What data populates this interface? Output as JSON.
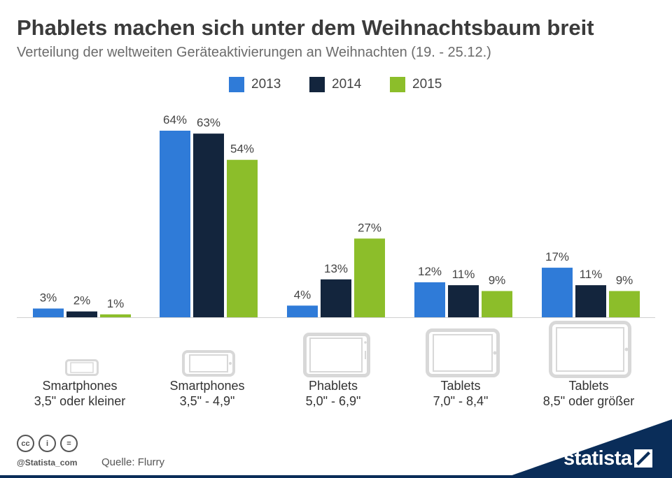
{
  "title": "Phablets machen sich unter dem Weihnachtsbaum breit",
  "subtitle": "Verteilung der weltweiten Geräteaktivierungen an Weihnachten (19. - 25.12.)",
  "legend": [
    {
      "label": "2013",
      "color": "#2f7bd8"
    },
    {
      "label": "2014",
      "color": "#13253d"
    },
    {
      "label": "2015",
      "color": "#8cbe2a"
    }
  ],
  "chart_data": {
    "type": "bar",
    "title": "Phablets machen sich unter dem Weihnachtsbaum breit",
    "subtitle": "Verteilung der weltweiten Geräteaktivierungen an Weihnachten (19. - 25.12.)",
    "categories": [
      "Smartphones 3,5\" oder kleiner",
      "Smartphones 3,5\" - 4,9\"",
      "Phablets 5,0\" - 6,9\"",
      "Tablets 7,0\" - 8,4\"",
      "Tablets 8,5\" oder größer"
    ],
    "series": [
      {
        "name": "2013",
        "values": [
          3,
          64,
          4,
          12,
          17
        ],
        "labels": [
          "3%",
          "64%",
          "4%",
          "12%",
          "17%"
        ]
      },
      {
        "name": "2014",
        "values": [
          2,
          63,
          13,
          11,
          11
        ],
        "labels": [
          "2%",
          "63%",
          "13%",
          "11%",
          "11%"
        ]
      },
      {
        "name": "2015",
        "values": [
          1,
          54,
          27,
          9,
          9
        ],
        "labels": [
          "1%",
          "54%",
          "27%",
          "9%",
          "9%"
        ]
      }
    ],
    "unit": "%",
    "ylim": [
      0,
      64
    ],
    "grid": false,
    "legend_position": "top-center"
  },
  "categories": [
    {
      "line1": "Smartphones",
      "line2": "3,5\" oder kleiner",
      "icon": "small-smartphone-icon"
    },
    {
      "line1": "Smartphones",
      "line2": "3,5\" - 4,9\"",
      "icon": "smartphone-icon"
    },
    {
      "line1": "Phablets",
      "line2": "5,0\" - 6,9\"",
      "icon": "phablet-icon"
    },
    {
      "line1": "Tablets",
      "line2": "7,0\" - 8,4\"",
      "icon": "tablet-icon"
    },
    {
      "line1": "Tablets",
      "line2": "8,5\" oder größer",
      "icon": "large-tablet-icon"
    }
  ],
  "footer": {
    "license_icons": [
      "cc",
      "i",
      "="
    ],
    "handle": "@Statista_com",
    "source": "Quelle: Flurry",
    "brand": "statista",
    "brand_color": "#0a2d59"
  }
}
